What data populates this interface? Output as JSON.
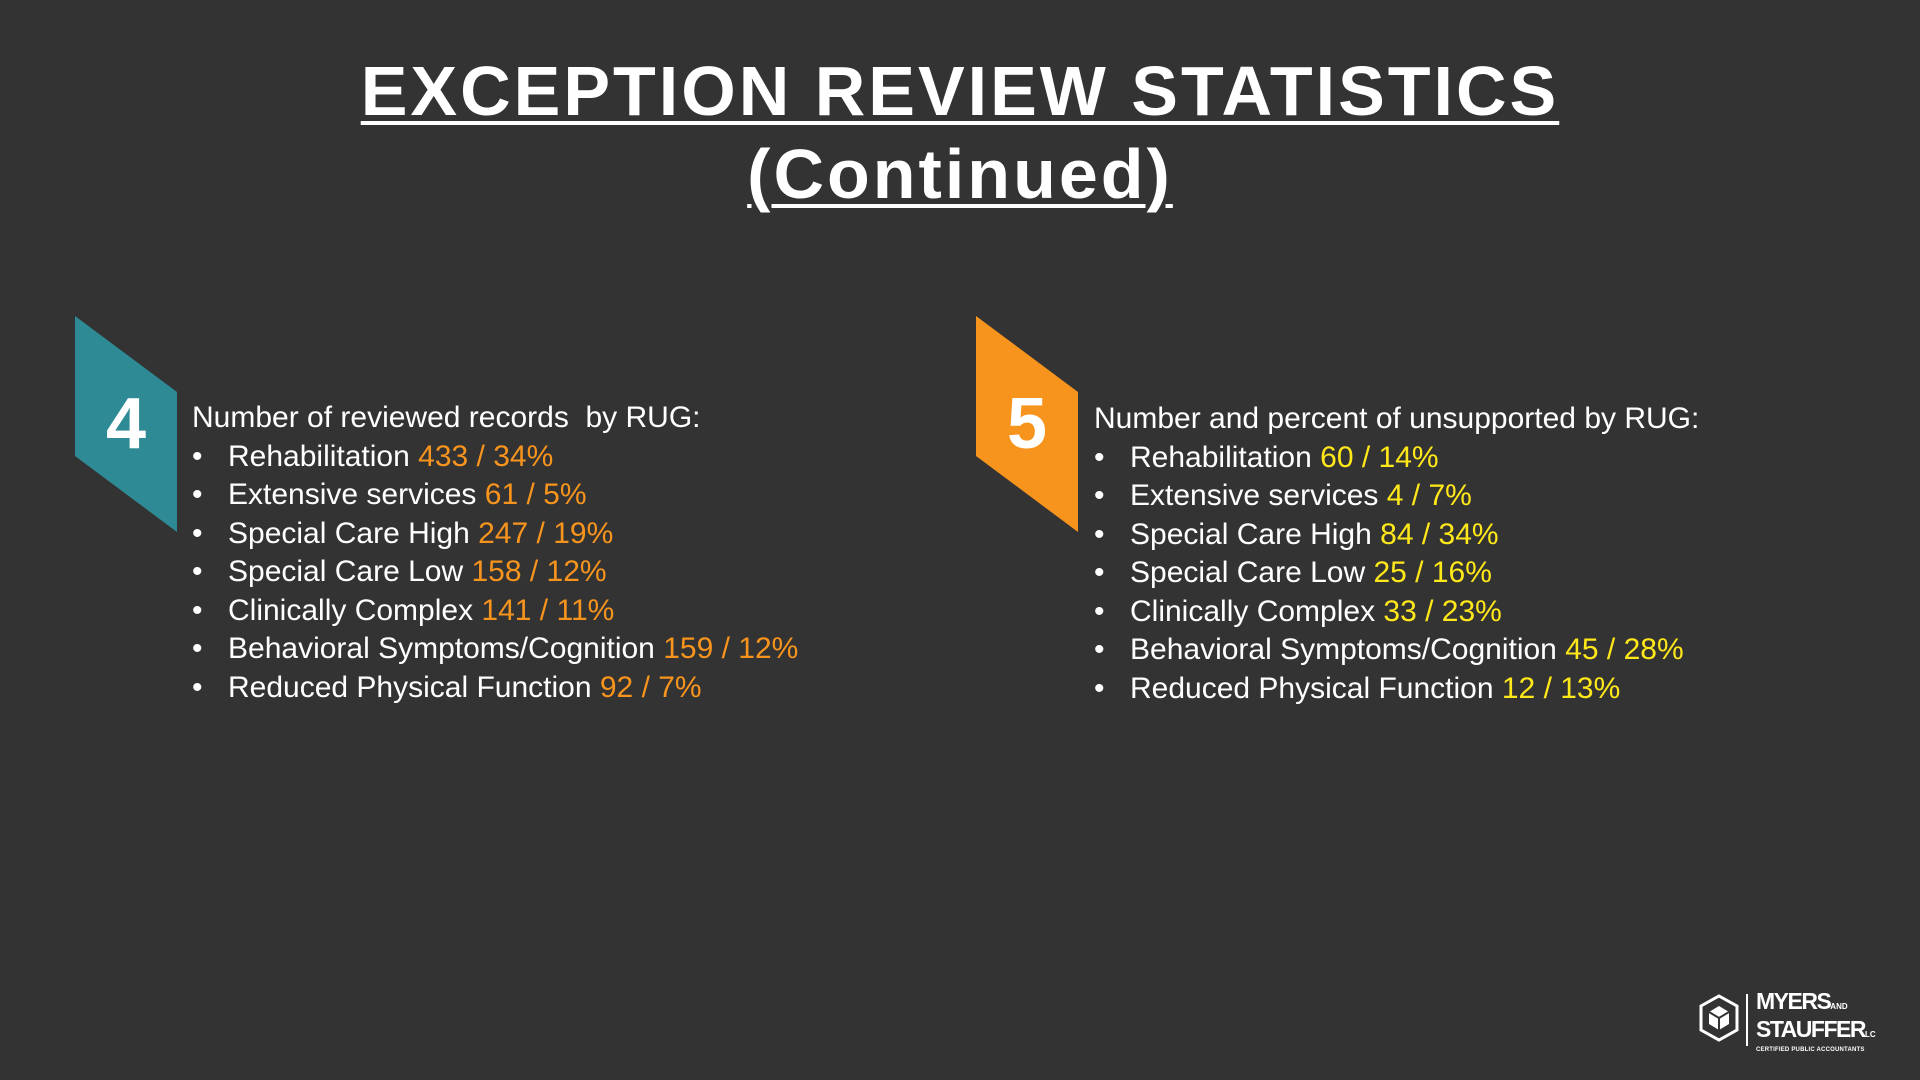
{
  "title": {
    "line1": "EXCEPTION REVIEW STATISTICS",
    "line2": "(Continued)"
  },
  "left_panel": {
    "badge_number": "4",
    "badge_color": "#2e8b95",
    "heading": "Number of reviewed records  by RUG:",
    "value_color": "#f7941d",
    "items": [
      {
        "label": "Rehabilitation",
        "value": "433 / 34%"
      },
      {
        "label": "Extensive services",
        "value": "61 / 5%"
      },
      {
        "label": "Special Care High",
        "value": "247 / 19%"
      },
      {
        "label": "Special Care Low",
        "value": "158 / 12%"
      },
      {
        "label": "Clinically Complex",
        "value": "141 / 11%"
      },
      {
        "label": "Behavioral Symptoms/Cognition",
        "value": "159 / 12%"
      },
      {
        "label": "Reduced Physical Function",
        "value": "92 / 7%"
      }
    ]
  },
  "right_panel": {
    "badge_number": "5",
    "badge_color": "#f7941d",
    "heading": "Number and percent of unsupported by RUG:",
    "value_color": "#ffe81a",
    "items": [
      {
        "label": "Rehabilitation",
        "value": "60 / 14%"
      },
      {
        "label": "Extensive services",
        "value": "4 / 7%"
      },
      {
        "label": "Special Care High",
        "value": "84 / 34%"
      },
      {
        "label": "Special Care Low",
        "value": "25 / 16%"
      },
      {
        "label": "Clinically Complex",
        "value": "33 / 23%"
      },
      {
        "label": "Behavioral Symptoms/Cognition",
        "value": "45 / 28%"
      },
      {
        "label": "Reduced Physical Function",
        "value": "12 / 13%"
      }
    ]
  },
  "bullet_char": "•",
  "logo": {
    "word1": "MYERS",
    "word1_suffix": "AND",
    "word2": "STAUFFER",
    "word2_suffix": "LC",
    "tagline": "CERTIFIED PUBLIC ACCOUNTANTS",
    "icon": "cube-logo-icon"
  }
}
